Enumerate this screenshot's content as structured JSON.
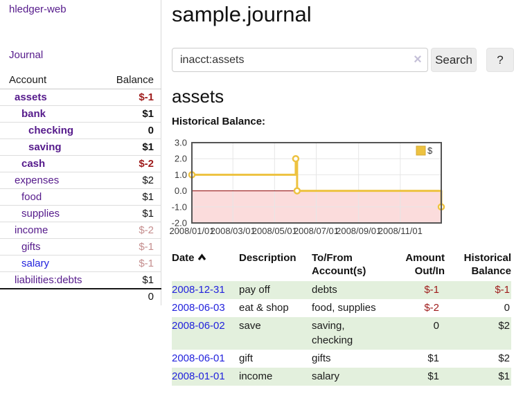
{
  "brand": "hledger-web",
  "nav": {
    "journal": "Journal"
  },
  "sidebar": {
    "headers": {
      "account": "Account",
      "balance": "Balance"
    },
    "accounts": [
      {
        "label": "assets",
        "balance": "$-1"
      },
      {
        "label": "bank",
        "balance": "$1"
      },
      {
        "label": "checking",
        "balance": "0"
      },
      {
        "label": "saving",
        "balance": "$1"
      },
      {
        "label": "cash",
        "balance": "$-2"
      },
      {
        "label": "expenses",
        "balance": "$2"
      },
      {
        "label": "food",
        "balance": "$1"
      },
      {
        "label": "supplies",
        "balance": "$1"
      },
      {
        "label": "income",
        "balance": "$-2"
      },
      {
        "label": "gifts",
        "balance": "$-1"
      },
      {
        "label": "salary",
        "balance": "$-1"
      },
      {
        "label": "liabilities:debts",
        "balance": "$1"
      }
    ],
    "total": "0"
  },
  "main": {
    "title": "sample.journal",
    "search": {
      "query": "inacct:assets",
      "clear_icon": "×",
      "search_button": "Search",
      "help_button": "?"
    },
    "account_heading": "assets",
    "section_label": "Historical Balance:",
    "register": {
      "headers": {
        "date": "Date",
        "description": "Description",
        "accounts": "To/From\nAccount(s)",
        "amount": "Amount\nOut/In",
        "balance": "Historical\nBalance"
      },
      "rows": [
        {
          "date": "2008-12-31",
          "description": "pay off",
          "accounts": "debts",
          "amount": "$-1",
          "balance": "$-1"
        },
        {
          "date": "2008-06-03",
          "description": "eat & shop",
          "accounts": "food, supplies",
          "amount": "$-2",
          "balance": "0"
        },
        {
          "date": "2008-06-02",
          "description": "save",
          "accounts": "saving, checking",
          "amount": "0",
          "balance": "$2"
        },
        {
          "date": "2008-06-01",
          "description": "gift",
          "accounts": "gifts",
          "amount": "$1",
          "balance": "$2"
        },
        {
          "date": "2008-01-01",
          "description": "income",
          "accounts": "salary",
          "amount": "$1",
          "balance": "$1"
        }
      ]
    }
  },
  "colors": {
    "link_purple": "#551A8B",
    "link_blue": "#2222DD",
    "negative": "#9E1A1A",
    "negative_dim": "#C58E8E",
    "row_stripe_green": "#E3F0DD"
  },
  "chart_data": {
    "type": "line",
    "style": "step",
    "title": "Historical Balance",
    "series": [
      {
        "name": "$",
        "color": "#EDC240",
        "points": [
          [
            "2008-01-01",
            1
          ],
          [
            "2008-06-01",
            2
          ],
          [
            "2008-06-03",
            0
          ],
          [
            "2008-12-31",
            -1
          ]
        ]
      }
    ],
    "x_ticks": [
      "2008/01/01",
      "2008/03/01",
      "2008/05/01",
      "2008/07/01",
      "2008/09/01",
      "2008/11/01"
    ],
    "y_ticks": [
      "3.0",
      "2.0",
      "1.0",
      "0.0",
      "-1.0",
      "-2.0"
    ],
    "xlim": [
      "2008-01-01",
      "2008-12-31"
    ],
    "ylim": [
      -2,
      3
    ],
    "legend": {
      "label": "$",
      "position": "top-right"
    },
    "grid": true,
    "grid_color": "#E6E6E6",
    "border_color": "#545454",
    "zero_line_color": "#8B0000",
    "negative_region_fill": "#FBDCDC",
    "marker": {
      "fill": "#FFFFFF",
      "radius": 4
    },
    "axis_label_color": "#3A3A3A"
  }
}
